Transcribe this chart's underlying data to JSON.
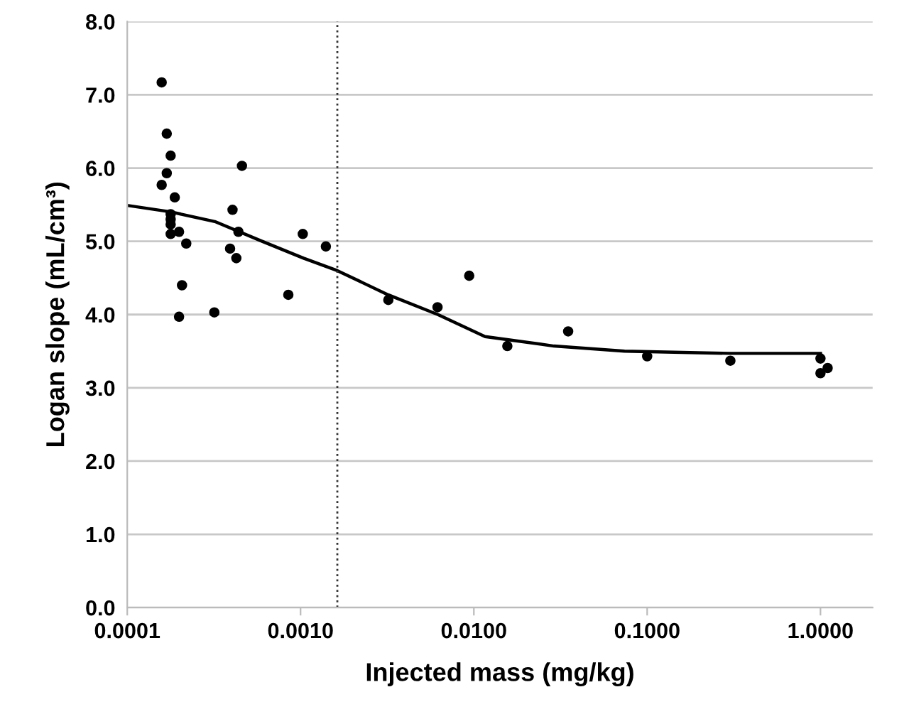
{
  "chart_data": {
    "type": "scatter",
    "xlabel": "Injected mass (mg/kg)",
    "ylabel": "Logan slope (mL/cm³)",
    "log": "x",
    "grid": "y",
    "legend": false,
    "xlim": [
      0.0001,
      2
    ],
    "xticks": [
      {
        "value": 0.0001,
        "label": "0.0001"
      },
      {
        "value": 0.001,
        "label": "0.0010"
      },
      {
        "value": 0.01,
        "label": "0.0100"
      },
      {
        "value": 0.1,
        "label": "0.1000"
      },
      {
        "value": 1,
        "label": "1.0000"
      }
    ],
    "ylim": [
      0,
      8
    ],
    "yticks": [
      {
        "value": 0,
        "label": "0.0"
      },
      {
        "value": 1,
        "label": "1.0"
      },
      {
        "value": 2,
        "label": "2.0"
      },
      {
        "value": 3,
        "label": "3.0"
      },
      {
        "value": 4,
        "label": "4.0"
      },
      {
        "value": 5,
        "label": "5.0"
      },
      {
        "value": 6,
        "label": "6.0"
      },
      {
        "value": 7,
        "label": "7.0"
      },
      {
        "value": 8,
        "label": "8.0"
      }
    ],
    "series": [
      {
        "color": "#000000",
        "marker": "circle",
        "x": [
          0.000158,
          0.000169,
          0.000178,
          0.000169,
          0.000158,
          0.000188,
          0.000178,
          0.000178,
          0.000178,
          0.000178,
          0.000199,
          0.000219,
          0.000207,
          0.000199,
          0.000318,
          0.000405,
          0.000459,
          0.000438,
          0.000392,
          0.000426,
          0.00085,
          0.00103,
          0.0014,
          0.00321,
          0.00617,
          0.0094,
          0.0156,
          0.035,
          0.1,
          0.302,
          1.0,
          1.0,
          1.1
        ],
        "values": [
          7.17,
          6.47,
          6.17,
          5.93,
          5.77,
          5.6,
          5.37,
          5.3,
          5.23,
          5.1,
          5.13,
          4.97,
          4.4,
          3.97,
          4.03,
          5.43,
          6.03,
          5.13,
          4.9,
          4.77,
          4.27,
          5.1,
          4.93,
          4.2,
          4.1,
          4.53,
          3.57,
          3.77,
          3.43,
          3.37,
          3.4,
          3.2,
          3.27
        ]
      },
      {
        "type": "line",
        "color": "#000000",
        "marker": "none",
        "line_style": "solid",
        "x": [
          0.0001,
          0.00018,
          0.00032,
          0.0006,
          0.00104,
          0.00163,
          0.0032,
          0.0062,
          0.0116,
          0.029,
          0.074,
          0.3,
          1.0
        ],
        "values": [
          5.49,
          5.4,
          5.27,
          5.0,
          4.77,
          4.6,
          4.27,
          4.0,
          3.7,
          3.57,
          3.5,
          3.47,
          3.47
        ]
      }
    ],
    "ref_lines": [
      {
        "axis": "x",
        "value": 0.00163,
        "color": "#333333",
        "line_style": "dotted"
      }
    ]
  }
}
